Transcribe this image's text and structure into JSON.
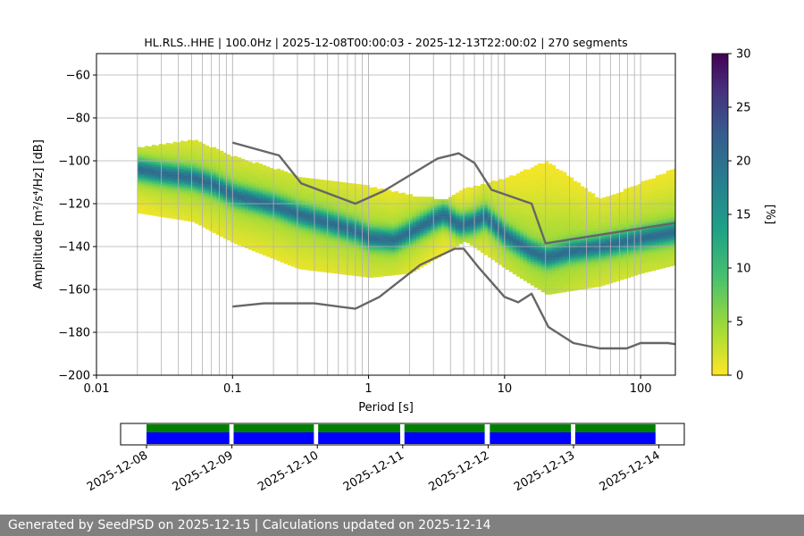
{
  "chart_data": [
    {
      "type": "heatmap",
      "title": "HL.RLS..HHE | 100.0Hz | 2025-12-08T00:00:03 - 2025-12-13T22:00:02 | 270 segments",
      "xlabel": "Period [s]",
      "ylabel": "Amplitude [m²/s⁴/Hz] [dB]",
      "xscale": "log",
      "xlim": [
        0.01,
        180
      ],
      "ylim": [
        -200,
        -50
      ],
      "xticks": [
        0.01,
        0.1,
        1,
        10,
        100
      ],
      "xtick_labels": [
        "0.01",
        "0.1",
        "1",
        "10",
        "100"
      ],
      "yticks": [
        -200,
        -180,
        -160,
        -140,
        -120,
        -100,
        -80,
        -60
      ],
      "ytick_labels": [
        "−200",
        "−180",
        "−160",
        "−140",
        "−120",
        "−100",
        "−80",
        "−60"
      ],
      "grid": true,
      "colorbar": {
        "label": "[%]",
        "range": [
          0,
          30
        ],
        "ticks": [
          0,
          5,
          10,
          15,
          20,
          25,
          30
        ],
        "colormap": "viridis_r"
      },
      "mode_curve": {
        "period": [
          0.02,
          0.03,
          0.05,
          0.07,
          0.1,
          0.2,
          0.3,
          0.5,
          0.8,
          1,
          1.5,
          2,
          3,
          3.5,
          4.5,
          5.5,
          7,
          10,
          15,
          20,
          30,
          50,
          100,
          180
        ],
        "amplitude": [
          -104,
          -106,
          -108,
          -111,
          -116,
          -121,
          -125,
          -129,
          -133,
          -136,
          -137,
          -133,
          -127,
          -125,
          -130,
          -129,
          -126,
          -135,
          -142,
          -145,
          -142,
          -140,
          -136,
          -133
        ]
      },
      "spread_db": {
        "period": [
          0.02,
          0.05,
          0.1,
          0.3,
          1,
          2,
          3.5,
          5,
          10,
          20,
          50,
          100,
          180
        ],
        "upper": [
          -94,
          -90,
          -98,
          -107,
          -112,
          -116,
          -118,
          -113,
          -108,
          -100,
          -118,
          -110,
          -103
        ],
        "lower": [
          -124,
          -128,
          -138,
          -150,
          -154,
          -152,
          -143,
          -137,
          -150,
          -162,
          -158,
          -152,
          -148
        ]
      },
      "series": [
        {
          "name": "",
          "x": [
            0.1,
            0.22,
            0.32,
            0.8,
            1.3,
            3.2,
            4.6,
            6,
            8,
            15.8,
            20,
            180
          ],
          "y": [
            -91.5,
            -97.5,
            -110.5,
            -120,
            -114,
            -99,
            -96.5,
            -101,
            -113.5,
            -120,
            -138.5,
            -129
          ]
        },
        {
          "name": "",
          "x": [
            0.1,
            0.17,
            0.4,
            0.8,
            1.2,
            2.4,
            4.3,
            5,
            6.4,
            10,
            12.6,
            15.8,
            21,
            32,
            50,
            79,
            100,
            158,
            180
          ],
          "y": [
            -168,
            -166.5,
            -166.5,
            -169,
            -163.5,
            -148.5,
            -141,
            -141,
            -149.5,
            -163.5,
            -166,
            -162,
            -177.5,
            -185,
            -187.5,
            -187.5,
            -185,
            -185,
            -185.5
          ]
        }
      ],
      "series_color": "#666666"
    },
    {
      "type": "timeline",
      "x_tick_labels": [
        "2025-12-08",
        "2025-12-09",
        "2025-12-10",
        "2025-12-11",
        "2025-12-12",
        "2025-12-13",
        "2025-12-14"
      ],
      "coverage": [
        {
          "start": 0.0,
          "end": 0.97
        },
        {
          "start": 1.02,
          "end": 1.96
        },
        {
          "start": 2.01,
          "end": 2.97
        },
        {
          "start": 3.02,
          "end": 3.96
        },
        {
          "start": 4.02,
          "end": 4.97
        },
        {
          "start": 5.02,
          "end": 5.96
        }
      ],
      "colors": {
        "data": "#0000ff",
        "processed": "#008000"
      }
    }
  ],
  "footer": {
    "text": "Generated by SeedPSD on 2025-12-15 | Calculations updated on 2025-12-14"
  }
}
